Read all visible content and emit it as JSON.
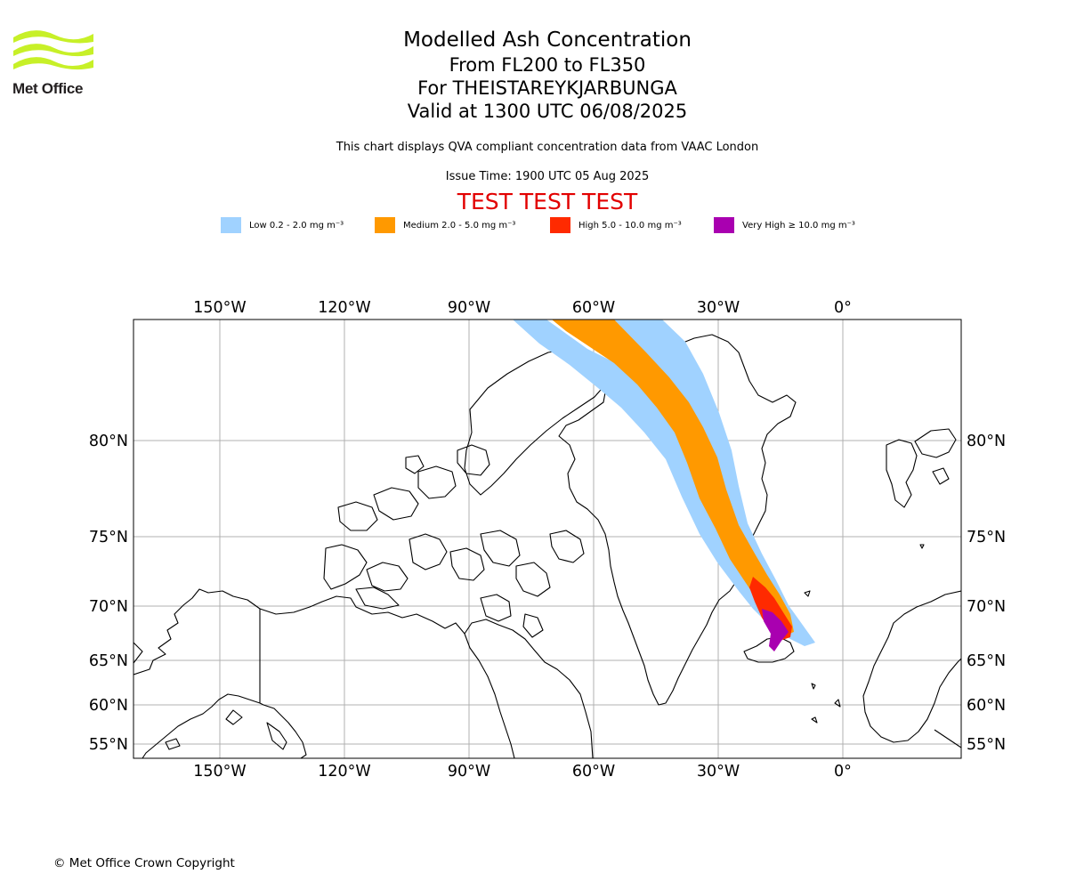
{
  "brand": {
    "name": "Met Office",
    "logo_color": "#c7f028"
  },
  "title": "Modelled Ash Concentration",
  "subtitle_lines": [
    "From FL200 to FL350",
    "For THEISTAREYKJARBUNGA",
    "Valid at 1300 UTC 06/08/2025"
  ],
  "compliance_note": "This chart displays QVA compliant concentration data from VAAC London",
  "issue_time": "Issue Time: 1900 UTC 05 Aug 2025",
  "test_banner": "TEST TEST TEST",
  "legend": [
    {
      "label": "Low 0.2 - 2.0 mg m⁻³",
      "color": "#a0d2ff"
    },
    {
      "label": "Medium 2.0 - 5.0 mg m⁻³",
      "color": "#ff9900"
    },
    {
      "label": "High 5.0 - 10.0 mg m⁻³",
      "color": "#ff2a00"
    },
    {
      "label": "Very High ≥ 10.0 mg m⁻³",
      "color": "#a900b0"
    }
  ],
  "map": {
    "longitude_ticks": [
      {
        "lon": -150,
        "label": "150°W"
      },
      {
        "lon": -120,
        "label": "120°W"
      },
      {
        "lon": -90,
        "label": "90°W"
      },
      {
        "lon": -60,
        "label": "60°W"
      },
      {
        "lon": -30,
        "label": "30°W"
      },
      {
        "lon": 0,
        "label": "0°"
      }
    ],
    "latitude_ticks": [
      {
        "lat": 80,
        "label": "80°N"
      },
      {
        "lat": 75,
        "label": "75°N"
      },
      {
        "lat": 70,
        "label": "70°N"
      },
      {
        "lat": 65,
        "label": "65°N"
      },
      {
        "lat": 60,
        "label": "60°N"
      },
      {
        "lat": 55,
        "label": "55°N"
      }
    ],
    "grid_color": "#b0b0b0",
    "coast_color": "#000000"
  },
  "copyright": "© Met Office Crown Copyright"
}
